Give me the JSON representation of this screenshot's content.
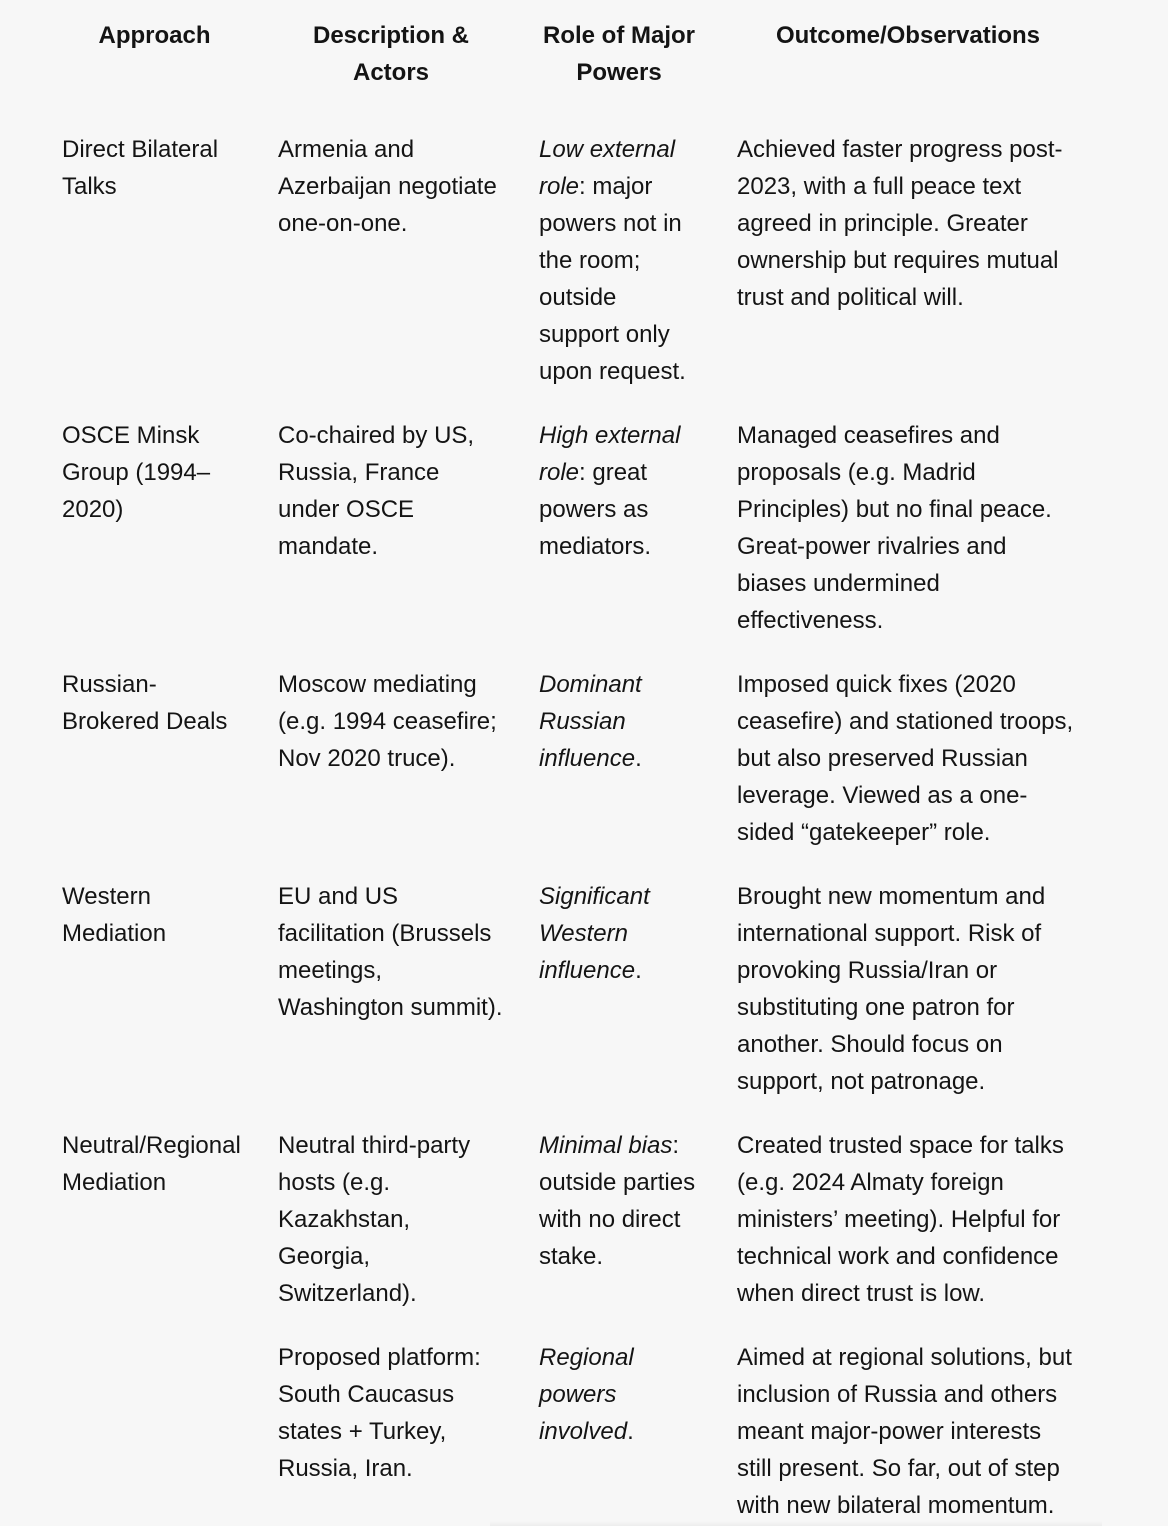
{
  "colors": {
    "background": "#f7f7f7",
    "text": "#141414"
  },
  "table": {
    "headers": [
      "Approach",
      "Description & Actors",
      "Role of Major Powers",
      "Outcome/Observations"
    ],
    "rows": [
      {
        "approach": "Direct Bilateral Talks",
        "description": "Armenia and Azerbaijan negotiate one-on-one.",
        "role": {
          "italic": "Low external role",
          "rest": ": major powers not in the room; outside support only upon request."
        },
        "outcome": "Achieved faster progress post-2023, with a full peace text agreed in principle. Greater ownership but requires mutual trust and political will."
      },
      {
        "approach": "OSCE Minsk Group (1994–2020)",
        "description": "Co-chaired by US, Russia, France under OSCE mandate.",
        "role": {
          "italic": "High external role",
          "rest": ": great powers as mediators."
        },
        "outcome": "Managed ceasefires and proposals (e.g. Madrid Principles) but no final peace. Great-power rivalries and biases undermined effectiveness."
      },
      {
        "approach": "Russian-Brokered Deals",
        "description": "Moscow mediating (e.g. 1994 ceasefire; Nov 2020 truce).",
        "role": {
          "italic": "Dominant Russian influence",
          "rest": "."
        },
        "outcome": "Imposed quick fixes (2020 ceasefire) and stationed troops, but also preserved Russian leverage. Viewed as a one-sided “gatekeeper” role."
      },
      {
        "approach": "Western Mediation",
        "description": "EU and US facilitation (Brussels meetings, Washington summit).",
        "role": {
          "italic": "Significant Western influence",
          "rest": "."
        },
        "outcome": "Brought new momentum and international support. Risk of provoking Russia/Iran or substituting one patron for another. Should focus on support, not patronage."
      },
      {
        "approach": "Neutral/Regional Mediation",
        "description": "Neutral third-party hosts (e.g. Kazakhstan, Georgia, Switzerland).",
        "role": {
          "italic": "Minimal bias",
          "rest": ": outside parties with no direct stake."
        },
        "outcome": "Created trusted space for talks (e.g. 2024 Almaty foreign ministers’ meeting). Helpful for technical work and confidence when direct trust is low."
      },
      {
        "approach": "",
        "description": "Proposed platform: South Caucasus states + Turkey, Russia, Iran.",
        "role": {
          "italic": "Regional powers involved",
          "rest": "."
        },
        "outcome": "Aimed at regional solutions, but inclusion of Russia and others meant major-power interests still present. So far, out of step with new bilateral momentum."
      }
    ]
  }
}
